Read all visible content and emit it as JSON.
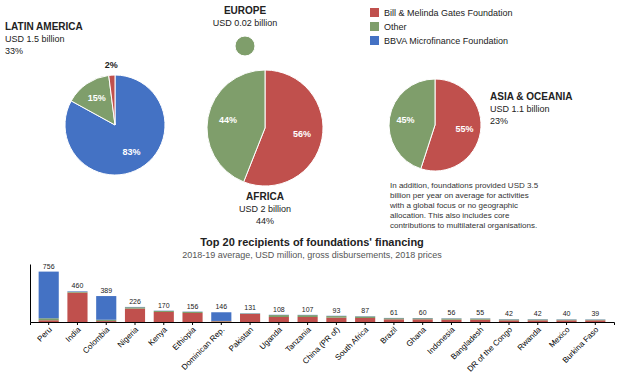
{
  "chart_data": [
    {
      "type": "pie",
      "title": "LATIN AMERICA",
      "subtitle": "USD 1.5 billion",
      "annotations": [
        "33%"
      ],
      "values": [
        83,
        15,
        2
      ],
      "value_labels": [
        "83%",
        "15%",
        "2%"
      ],
      "colors": [
        "#4472c4",
        "#7f9e6b",
        "#c0504d"
      ],
      "data_labels": true
    },
    {
      "type": "pie",
      "title": "EUROPE",
      "subtitle": "USD 0.02 billion",
      "values": [
        100
      ],
      "colors": [
        "#7f9e6b"
      ],
      "data_labels": false
    },
    {
      "type": "pie",
      "title": "AFRICA",
      "subtitle": "USD 2 billion",
      "annotations": [
        "44%"
      ],
      "values": [
        56,
        44
      ],
      "value_labels": [
        "56%",
        "44%"
      ],
      "colors": [
        "#c0504d",
        "#7f9e6b"
      ],
      "data_labels": true
    },
    {
      "type": "pie",
      "title": "ASIA & OCEANIA",
      "subtitle": "USD 1.1 billion",
      "annotations": [
        "23%"
      ],
      "values": [
        55,
        45
      ],
      "value_labels": [
        "55%",
        "45%"
      ],
      "colors": [
        "#c0504d",
        "#7f9e6b"
      ],
      "data_labels": true
    },
    {
      "type": "bar",
      "stacked": true,
      "title": "Top 20 recipients of foundations' financing",
      "subtitle": "2018-19 average, USD million, gross disbursements, 2018 prices",
      "annotation": "In addition, foundations provided USD 3.5\nbillion per year on average for activities\nwith a global focus or no geographic\nallocation. This also includes core\ncontributions to multilateral organisations.",
      "categories": [
        "Peru",
        "India",
        "Colombia",
        "Nigeria",
        "Kenya",
        "Ethiopia",
        "Dominican Rep.",
        "Pakistan",
        "Uganda",
        "Tanzania",
        "China (PR of)",
        "South Africa",
        "Brazil",
        "Ghana",
        "Indonesia",
        "Bangladesh",
        "DR of the Congo",
        "Rwanda",
        "Mexico",
        "Burkina Faso"
      ],
      "series": [
        {
          "name": "Bill & Melinda Gates Foundation",
          "color": "#c0504d",
          "values": [
            26,
            440,
            14,
            201,
            150,
            135,
            10,
            120,
            75,
            75,
            65,
            60,
            40,
            40,
            35,
            35,
            25,
            25,
            25,
            25
          ]
        },
        {
          "name": "Other",
          "color": "#7f9e6b",
          "values": [
            30,
            12,
            20,
            20,
            16,
            17,
            6,
            7,
            29,
            28,
            24,
            23,
            17,
            16,
            17,
            16,
            13,
            13,
            11,
            10
          ]
        },
        {
          "name": "BBVA Microfinance Foundation",
          "color": "#4472c4",
          "values": [
            700,
            8,
            355,
            5,
            4,
            4,
            130,
            4,
            4,
            4,
            4,
            4,
            4,
            4,
            4,
            4,
            4,
            4,
            4,
            4
          ]
        }
      ],
      "totals": [
        756,
        460,
        389,
        226,
        170,
        156,
        146,
        131,
        108,
        107,
        93,
        87,
        61,
        60,
        56,
        55,
        42,
        42,
        40,
        39
      ],
      "ylim": [
        0,
        870
      ],
      "tick_labels": "x",
      "legend": "top-right",
      "grid": false
    }
  ]
}
